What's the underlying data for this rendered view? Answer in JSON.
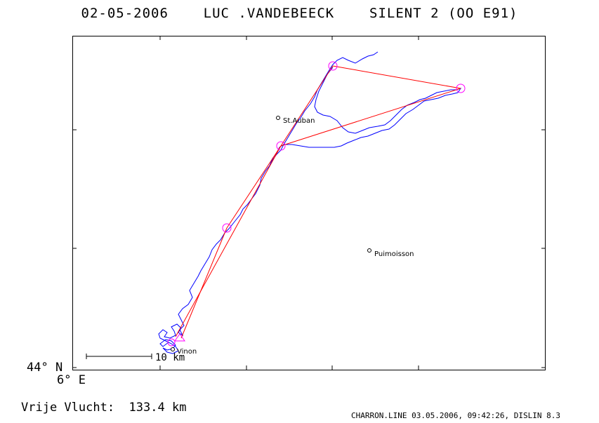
{
  "header": {
    "date": "02-05-2006",
    "pilot": "LUC .VANDEBEECK",
    "glider": "SILENT 2 (OO E91)"
  },
  "axes": {
    "lat_label": "44° N",
    "lon_label": "6° E"
  },
  "towns": [
    {
      "name": "St.Auban"
    },
    {
      "name": "Puimoisson"
    },
    {
      "name": "Vinon"
    }
  ],
  "scale_bar": {
    "label": "10 km"
  },
  "summary": {
    "label": "Vrije Vlucht:",
    "value": "133.4 km"
  },
  "footer": {
    "text": "CHARRON.LINE 03.05.2006, 09:42:26, DISLIN 8.3"
  },
  "colors": {
    "track": "#0000ff",
    "task": "#ff0000",
    "turnpoint": "#ff00ff"
  }
}
